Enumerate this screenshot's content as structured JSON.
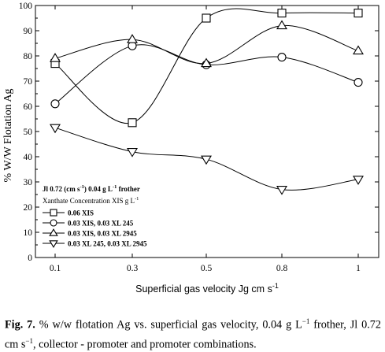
{
  "chart_data": {
    "type": "line",
    "xlabel": "Superficial  gas velocity Jg cm s",
    "xlabel_sup": "-1",
    "ylabel": "% W/W Flotation Ag",
    "categories": [
      "0.1",
      "0.3",
      "0.5",
      "0.8",
      "1"
    ],
    "ylim": [
      0,
      100
    ],
    "yticks": [
      "0",
      "10",
      "20",
      "30",
      "40",
      "50",
      "60",
      "70",
      "80",
      "90",
      "100"
    ],
    "grid": false,
    "legend_position": "bottom-left",
    "annotation": {
      "line1_a": "Jl 0.72 (cm s",
      "line1_a_sup": "-1",
      "line1_b": ")  0.04 g L",
      "line1_b_sup": "-1",
      "line1_c": " frother",
      "line2": "Xanthate Concentration XIS g L",
      "line2_sup": "-1"
    },
    "series": [
      {
        "name": "0.06 XIS",
        "marker": "square",
        "values": [
          77,
          53.5,
          95,
          97,
          97
        ]
      },
      {
        "name": "0.03 XIS, 0.03 XL 245",
        "marker": "circle",
        "values": [
          61,
          84,
          76.5,
          79.5,
          69.5
        ]
      },
      {
        "name": "0.03 XIS, 0.03 XL 2945",
        "marker": "triangle-up",
        "values": [
          79,
          86.5,
          77,
          92,
          82
        ]
      },
      {
        "name": "0.03 XL 245, 0.03 XL 2945",
        "marker": "triangle-down",
        "values": [
          51.5,
          42,
          39,
          27,
          31
        ]
      }
    ]
  },
  "caption": {
    "label": "Fig. 7.",
    "text_a": " % w/w flotation Ag vs. superficial gas velocity, 0.04 g L",
    "sup_a": "−1",
    "text_b": " frother, Jl 0.72 cm s",
    "sup_b": "−1",
    "text_c": ", collector - promoter and promoter combinations."
  }
}
